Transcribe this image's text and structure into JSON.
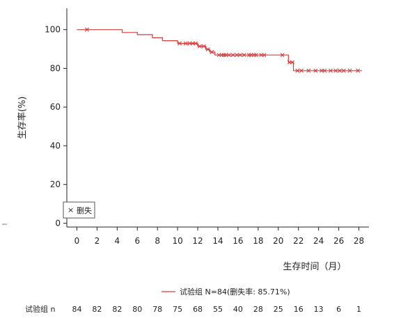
{
  "chart_data": {
    "type": "line",
    "subtype": "kaplan-meier",
    "ylabel": "生存率(%)",
    "xlabel": "生存时间（月）",
    "xlim": [
      -1,
      29
    ],
    "ylim": [
      -2,
      111
    ],
    "xticks": [
      0,
      2,
      4,
      6,
      8,
      10,
      12,
      14,
      16,
      18,
      20,
      22,
      24,
      26,
      28
    ],
    "yticks": [
      0,
      20,
      40,
      60,
      80,
      100
    ],
    "grid": false,
    "color": "#d93a3a",
    "legend_inset": {
      "symbol": "×",
      "label": "删失",
      "placement": "bottom-left"
    },
    "legend_bottom": "试验组 N=84(删失率: 85.71%)",
    "series": [
      {
        "name": "试验组",
        "step_x": [
          0,
          4.5,
          4.5,
          6,
          6,
          7.5,
          7.5,
          8.5,
          8.5,
          10,
          10,
          12,
          12,
          12.8,
          12.8,
          13.2,
          13.2,
          13.7,
          13.7,
          14,
          14,
          21,
          21,
          21.5,
          21.5,
          28.3
        ],
        "step_y": [
          100,
          100,
          98.5,
          98.5,
          97.4,
          97.4,
          95.8,
          95.8,
          94.3,
          94.3,
          92.9,
          92.9,
          91.4,
          91.4,
          89.8,
          89.8,
          88.4,
          88.4,
          86.9,
          86.9,
          86.9,
          86.9,
          83.1,
          83.1,
          78.8,
          78.8
        ],
        "censored": [
          [
            1,
            100
          ],
          [
            10.2,
            92.9
          ],
          [
            10.8,
            92.9
          ],
          [
            11.2,
            92.9
          ],
          [
            11.5,
            92.9
          ],
          [
            11.8,
            92.9
          ],
          [
            12.2,
            91.4
          ],
          [
            12.6,
            91.4
          ],
          [
            13,
            89.8
          ],
          [
            13.4,
            88.4
          ],
          [
            14.1,
            86.9
          ],
          [
            14.4,
            86.9
          ],
          [
            14.6,
            86.9
          ],
          [
            14.8,
            86.9
          ],
          [
            15.1,
            86.9
          ],
          [
            15.5,
            86.9
          ],
          [
            15.9,
            86.9
          ],
          [
            16.2,
            86.9
          ],
          [
            16.6,
            86.9
          ],
          [
            17.1,
            86.9
          ],
          [
            17.3,
            86.9
          ],
          [
            17.6,
            86.9
          ],
          [
            17.8,
            86.9
          ],
          [
            18.3,
            86.9
          ],
          [
            18.6,
            86.9
          ],
          [
            20.4,
            86.9
          ],
          [
            21.1,
            83.1
          ],
          [
            21.4,
            83.1
          ],
          [
            21.9,
            78.8
          ],
          [
            22.3,
            78.8
          ],
          [
            23,
            78.8
          ],
          [
            23.7,
            78.8
          ],
          [
            24.3,
            78.8
          ],
          [
            24.6,
            78.8
          ],
          [
            25.2,
            78.8
          ],
          [
            25.7,
            78.8
          ],
          [
            26.1,
            78.8
          ],
          [
            26.5,
            78.8
          ],
          [
            27.1,
            78.8
          ],
          [
            27.9,
            78.8
          ]
        ]
      }
    ],
    "risk_table": {
      "label": "试验组 n",
      "times": [
        0,
        2,
        4,
        6,
        8,
        10,
        12,
        14,
        16,
        18,
        20,
        22,
        24,
        26,
        28
      ],
      "values": [
        "84",
        "82",
        "82",
        "80",
        "78",
        "75",
        "68",
        "55",
        "40",
        "28",
        "25",
        "16",
        "13",
        "6",
        "1"
      ]
    }
  }
}
